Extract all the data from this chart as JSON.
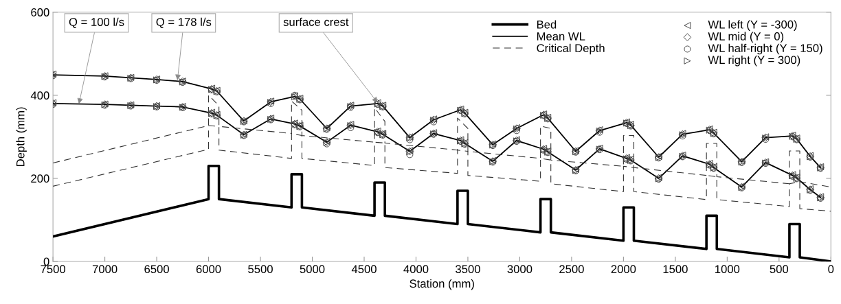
{
  "chart_data": {
    "type": "line",
    "xlabel": "Station (mm)",
    "ylabel": "Depth (mm)",
    "xlim": [
      7500,
      0
    ],
    "ylim": [
      0,
      600
    ],
    "xticks": [
      7500,
      7000,
      6500,
      6000,
      5500,
      5000,
      4500,
      4000,
      3500,
      3000,
      2500,
      2000,
      1500,
      1000,
      500,
      0
    ],
    "yticks": [
      0,
      200,
      400,
      600
    ],
    "grid": false,
    "legend": "top right",
    "annotations": [
      {
        "text": "Q = 100 l/s",
        "x": 7250,
        "y": 379
      },
      {
        "text": "Q = 178 l/s",
        "x": 6300,
        "y": 436
      },
      {
        "text": "surface crest",
        "x": 4370,
        "y": 382
      }
    ],
    "series": [
      {
        "name": "Bed",
        "color": "#000000",
        "line_style": "solid",
        "x": [
          7500,
          6000,
          6000,
          5900,
          5900,
          5200,
          5200,
          5100,
          5100,
          4400,
          4400,
          4300,
          4300,
          3600,
          3600,
          3500,
          3500,
          2800,
          2800,
          2700,
          2700,
          2000,
          2000,
          1900,
          1900,
          1200,
          1200,
          1100,
          1100,
          400,
          400,
          300,
          300,
          0
        ],
        "values": [
          60,
          150,
          230,
          230,
          150,
          130,
          210,
          210,
          130,
          110,
          190,
          190,
          110,
          90,
          170,
          170,
          90,
          70,
          150,
          150,
          70,
          50,
          130,
          130,
          50,
          30,
          110,
          110,
          30,
          10,
          90,
          90,
          10,
          0
        ]
      },
      {
        "name": "Mean WL",
        "color": "#000000",
        "line_style": "solid",
        "x": [
          7500,
          7000,
          6750,
          6500,
          6250,
          5970,
          5920,
          5660,
          5400,
          5170,
          5120,
          4860,
          4630,
          4370,
          4320,
          4060,
          3830,
          3570,
          3530,
          3260,
          3030,
          2770,
          2730,
          2460,
          2230,
          1970,
          1930,
          1660,
          1430,
          1170,
          1130,
          860,
          630,
          370,
          330,
          200,
          100
        ],
        "values": [
          449,
          446,
          442,
          438,
          433,
          415,
          410,
          338,
          384,
          397,
          391,
          320,
          374,
          380,
          374,
          298,
          341,
          365,
          357,
          281,
          320,
          353,
          345,
          265,
          315,
          334,
          328,
          251,
          306,
          317,
          309,
          240,
          298,
          302,
          295,
          253,
          226
        ]
      },
      {
        "color": "#000000",
        "line_style": "solid",
        "x": [
          7500,
          7000,
          6750,
          6500,
          6250,
          5970,
          5920,
          5660,
          5400,
          5170,
          5120,
          4860,
          4630,
          4370,
          4320,
          4060,
          3830,
          3570,
          3530,
          3260,
          3030,
          2770,
          2730,
          2460,
          2230,
          1970,
          1930,
          1660,
          1430,
          1170,
          1130,
          860,
          630,
          370,
          330,
          200,
          100
        ],
        "values": [
          380,
          378,
          376,
          374,
          372,
          357,
          352,
          305,
          343,
          331,
          326,
          287,
          328,
          312,
          306,
          265,
          308,
          291,
          284,
          241,
          291,
          270,
          264,
          220,
          271,
          248,
          244,
          200,
          254,
          234,
          226,
          179,
          238,
          207,
          201,
          173,
          154
        ]
      },
      {
        "name": "Critical Depth",
        "color": "#333333",
        "line_style": "dashed",
        "x": [
          7500,
          6000,
          6000,
          5900,
          5900,
          5200,
          5200,
          5100,
          5100,
          4400,
          4400,
          4300,
          4300,
          3600,
          3600,
          3500,
          3500,
          2800,
          2800,
          2700,
          2700,
          2000,
          2000,
          1900,
          1900,
          1200,
          1200,
          1100,
          1100,
          400,
          400,
          300,
          300,
          0
        ],
        "values": [
          237,
          327,
          400,
          375,
          325,
          308,
          386,
          364,
          303,
          287,
          370,
          337,
          285,
          268,
          345,
          320,
          265,
          248,
          326,
          320,
          244,
          229,
          303,
          303,
          226,
          207,
          284,
          284,
          204,
          187,
          266,
          266,
          192,
          179
        ]
      },
      {
        "color": "#333333",
        "line_style": "dashed",
        "x": [
          7500,
          6000,
          6000,
          5900,
          5900,
          5200,
          5200,
          5100,
          5100,
          4400,
          4400,
          4300,
          4300,
          3600,
          3600,
          3500,
          3500,
          2800,
          2800,
          2700,
          2700,
          2000,
          2000,
          1900,
          1900,
          1200,
          1200,
          1100,
          1100,
          400,
          400,
          300,
          300,
          0
        ],
        "values": [
          181,
          270,
          327,
          325,
          268,
          248,
          308,
          303,
          248,
          231,
          287,
          285,
          226,
          212,
          268,
          265,
          207,
          193,
          248,
          244,
          187,
          168,
          229,
          226,
          168,
          149,
          207,
          204,
          149,
          132,
          187,
          192,
          127,
          121
        ]
      },
      {
        "name": "WL left (Y = -300)",
        "type": "scatter",
        "color": "#444444",
        "marker": "triangle-left",
        "x": [
          7500,
          7000,
          6750,
          6500,
          6250,
          5970,
          5920,
          5660,
          5400,
          5170,
          5120,
          4860,
          4630,
          4370,
          4320,
          4060,
          3830,
          3570,
          3530,
          3260,
          3030,
          2770,
          2730,
          2460,
          2230,
          1970,
          1930,
          1660,
          1430,
          1170,
          1130,
          860,
          630,
          370,
          330,
          200,
          100,
          7500,
          7000,
          6750,
          6500,
          6250,
          5970,
          5920,
          5660,
          5400,
          5170,
          5120,
          4860,
          4630,
          4370,
          4320,
          4060,
          3830,
          3570,
          3530,
          3260,
          3030,
          2770,
          2730,
          2460,
          2230,
          1970,
          1930,
          1660,
          1430,
          1170,
          1130,
          860,
          630,
          370,
          330,
          200,
          100
        ],
        "values": [
          451,
          447,
          443,
          439,
          434,
          417,
          412,
          338,
          386,
          399,
          393,
          322,
          376,
          382,
          376,
          300,
          343,
          367,
          359,
          283,
          322,
          355,
          347,
          267,
          317,
          336,
          330,
          253,
          308,
          319,
          311,
          242,
          300,
          304,
          297,
          255,
          228,
          382,
          379,
          377,
          375,
          373,
          359,
          354,
          306,
          345,
          333,
          328,
          289,
          330,
          314,
          308,
          267,
          310,
          293,
          286,
          243,
          293,
          272,
          266,
          222,
          273,
          250,
          246,
          202,
          256,
          236,
          228,
          181,
          240,
          209,
          203,
          175,
          156
        ]
      },
      {
        "name": "WL mid (Y = 0)",
        "type": "scatter",
        "color": "#444444",
        "marker": "diamond",
        "x": [
          7500,
          7000,
          6750,
          6500,
          6250,
          5970,
          5920,
          5660,
          5400,
          5170,
          5120,
          4860,
          4630,
          4370,
          4320,
          4060,
          3830,
          3570,
          3530,
          3260,
          3030,
          2770,
          2730,
          2460,
          2230,
          1970,
          1930,
          1660,
          1430,
          1170,
          1130,
          860,
          630,
          370,
          330,
          200,
          100,
          7500,
          7000,
          6750,
          6500,
          6250,
          5970,
          5920,
          5660,
          5400,
          5170,
          5120,
          4860,
          4630,
          4370,
          4320,
          4060,
          3830,
          3570,
          3530,
          3260,
          3030,
          2770,
          2730,
          2460,
          2230,
          1970,
          1930,
          1660,
          1430,
          1170,
          1130,
          860,
          630,
          370,
          330,
          200,
          100
        ],
        "values": [
          449,
          446,
          442,
          438,
          433,
          415,
          410,
          338,
          384,
          397,
          391,
          320,
          374,
          380,
          374,
          298,
          341,
          365,
          357,
          281,
          320,
          353,
          345,
          265,
          315,
          334,
          328,
          251,
          306,
          317,
          309,
          240,
          298,
          302,
          295,
          253,
          226,
          380,
          378,
          376,
          374,
          372,
          357,
          352,
          305,
          343,
          331,
          326,
          287,
          328,
          312,
          306,
          265,
          308,
          291,
          284,
          241,
          291,
          270,
          264,
          220,
          271,
          248,
          244,
          200,
          254,
          234,
          226,
          179,
          238,
          207,
          201,
          173,
          154
        ]
      },
      {
        "name": "WL half-right (Y = 150)",
        "type": "scatter",
        "color": "#444444",
        "marker": "circle",
        "x": [
          7500,
          7000,
          6750,
          6500,
          6250,
          5970,
          5920,
          5660,
          5400,
          5170,
          5120,
          4860,
          4630,
          4370,
          4320,
          4060,
          3830,
          3570,
          3530,
          3260,
          3030,
          2770,
          2730,
          2460,
          2230,
          1970,
          1930,
          1660,
          1430,
          1170,
          1130,
          860,
          630,
          370,
          330,
          200,
          100,
          7500,
          7000,
          6750,
          6500,
          6250,
          5970,
          5920,
          5660,
          5400,
          5170,
          5120,
          4860,
          4630,
          4370,
          4320,
          4060,
          3830,
          3570,
          3530,
          3260,
          3030,
          2770,
          2730,
          2460,
          2230,
          1970,
          1930,
          1660,
          1430,
          1170,
          1130,
          860,
          630,
          370,
          330,
          200,
          100
        ],
        "values": [
          447,
          444,
          440,
          436,
          431,
          413,
          408,
          336,
          380,
          400,
          389,
          318,
          371,
          378,
          372,
          293,
          336,
          363,
          355,
          279,
          315,
          351,
          343,
          263,
          311,
          332,
          326,
          249,
          302,
          315,
          307,
          238,
          294,
          300,
          293,
          251,
          224,
          378,
          376,
          374,
          372,
          370,
          355,
          350,
          303,
          341,
          329,
          324,
          283,
          322,
          310,
          304,
          257,
          306,
          289,
          282,
          239,
          289,
          268,
          262,
          218,
          269,
          246,
          242,
          198,
          252,
          232,
          224,
          177,
          236,
          205,
          199,
          171,
          152
        ]
      },
      {
        "name": "WL right (Y = 300)",
        "type": "scatter",
        "color": "#444444",
        "marker": "triangle-right",
        "x": [
          7500,
          7000,
          6750,
          6500,
          6250,
          5970,
          5920,
          5660,
          5400,
          5170,
          5120,
          4860,
          4630,
          4370,
          4320,
          4060,
          3830,
          3570,
          3530,
          3260,
          3030,
          2770,
          2730,
          2460,
          2230,
          1970,
          1930,
          1660,
          1430,
          1170,
          1130,
          860,
          630,
          370,
          330,
          200,
          100,
          7500,
          7000,
          6750,
          6500,
          6250,
          5970,
          5920,
          5660,
          5400,
          5170,
          5120,
          4860,
          4630,
          4370,
          4320,
          4060,
          3830,
          3570,
          3530,
          3260,
          3030,
          2770,
          2730,
          2460,
          2230,
          1970,
          1930,
          1660,
          1430,
          1170,
          1130,
          860,
          630,
          370,
          330,
          200,
          100
        ],
        "values": [
          448,
          445,
          441,
          437,
          432,
          414,
          409,
          337,
          383,
          396,
          390,
          319,
          373,
          379,
          373,
          297,
          340,
          364,
          356,
          280,
          319,
          352,
          344,
          264,
          314,
          333,
          327,
          250,
          305,
          316,
          308,
          239,
          297,
          301,
          294,
          252,
          225,
          379,
          377,
          375,
          373,
          371,
          356,
          351,
          304,
          342,
          330,
          325,
          286,
          327,
          311,
          305,
          264,
          307,
          290,
          283,
          240,
          290,
          269,
          263,
          219,
          270,
          247,
          243,
          199,
          253,
          233,
          225,
          178,
          237,
          206,
          200,
          172,
          153
        ]
      }
    ]
  }
}
